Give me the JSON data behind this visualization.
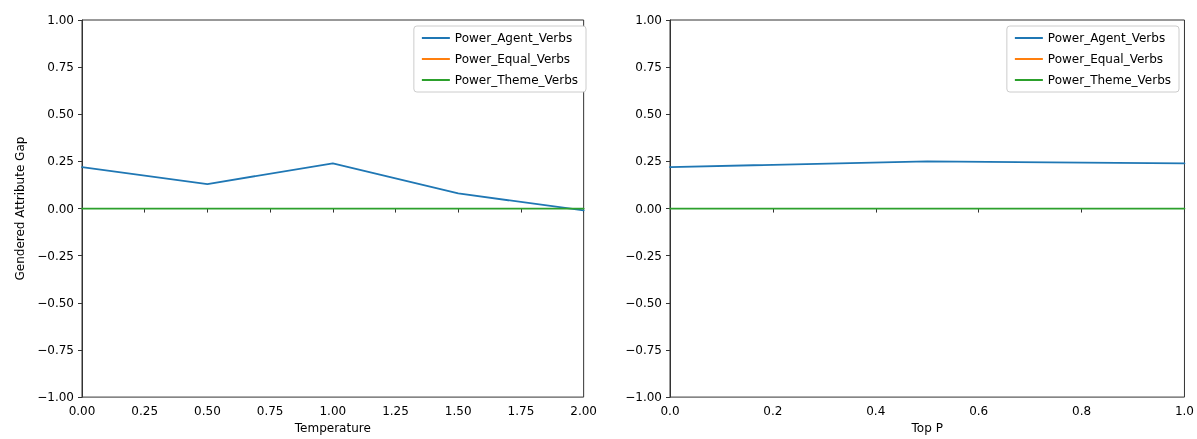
{
  "chart_data": [
    {
      "type": "line",
      "xlabel": "Temperature",
      "ylabel": "Gendered Attribute Gap",
      "x": [
        0,
        0.5,
        1,
        1.5,
        2
      ],
      "series": [
        {
          "name": "Power_Agent_Verbs",
          "color": "#1f77b4",
          "values": [
            0.22,
            0.13,
            0.24,
            0.08,
            -0.01
          ]
        },
        {
          "name": "Power_Equal_Verbs",
          "color": "#ff7f0e",
          "values": [
            null,
            null,
            null,
            null,
            null
          ]
        },
        {
          "name": "Power_Theme_Verbs",
          "color": "#2ca02c",
          "values": [
            0,
            0,
            0,
            0,
            0
          ]
        }
      ],
      "xlim": [
        0,
        2
      ],
      "xticks": [
        {
          "value": 0,
          "label": "0.00"
        },
        {
          "value": 0.25,
          "label": "0.25"
        },
        {
          "value": 0.5,
          "label": "0.50"
        },
        {
          "value": 0.75,
          "label": "0.75"
        },
        {
          "value": 1,
          "label": "1.00"
        },
        {
          "value": 1.25,
          "label": "1.25"
        },
        {
          "value": 1.5,
          "label": "1.50"
        },
        {
          "value": 1.75,
          "label": "1.75"
        },
        {
          "value": 2,
          "label": "2.00"
        }
      ],
      "ylim": [
        -1,
        1
      ],
      "yticks": [
        {
          "value": -1,
          "label": "−1.00"
        },
        {
          "value": -0.75,
          "label": "−0.75"
        },
        {
          "value": -0.5,
          "label": "−0.50"
        },
        {
          "value": -0.25,
          "label": "−0.25"
        },
        {
          "value": 0,
          "label": "0.00"
        },
        {
          "value": 0.25,
          "label": "0.25"
        },
        {
          "value": 0.5,
          "label": "0.50"
        },
        {
          "value": 0.75,
          "label": "0.75"
        },
        {
          "value": 1,
          "label": "1.00"
        }
      ],
      "legend": "top right"
    },
    {
      "type": "line",
      "xlabel": "Top P",
      "x": [
        0,
        0.5,
        1
      ],
      "series": [
        {
          "name": "Power_Agent_Verbs",
          "color": "#1f77b4",
          "values": [
            0.22,
            0.25,
            0.24
          ]
        },
        {
          "name": "Power_Equal_Verbs",
          "color": "#ff7f0e",
          "values": [
            null,
            null,
            null
          ]
        },
        {
          "name": "Power_Theme_Verbs",
          "color": "#2ca02c",
          "values": [
            0,
            0,
            0
          ]
        }
      ],
      "xlim": [
        0,
        1
      ],
      "xticks": [
        {
          "value": 0,
          "label": "0.0"
        },
        {
          "value": 0.2,
          "label": "0.2"
        },
        {
          "value": 0.4,
          "label": "0.4"
        },
        {
          "value": 0.6,
          "label": "0.6"
        },
        {
          "value": 0.8,
          "label": "0.8"
        },
        {
          "value": 1,
          "label": "1.0"
        }
      ],
      "ylim": [
        -1,
        1
      ],
      "yticks": [
        {
          "value": -1,
          "label": "−1.00"
        },
        {
          "value": -0.75,
          "label": "−0.75"
        },
        {
          "value": -0.5,
          "label": "−0.50"
        },
        {
          "value": -0.25,
          "label": "−0.25"
        },
        {
          "value": 0,
          "label": "0.00"
        },
        {
          "value": 0.25,
          "label": "0.25"
        },
        {
          "value": 0.5,
          "label": "0.50"
        },
        {
          "value": 0.75,
          "label": "0.75"
        },
        {
          "value": 1,
          "label": "1.00"
        }
      ],
      "legend": "top right"
    }
  ]
}
